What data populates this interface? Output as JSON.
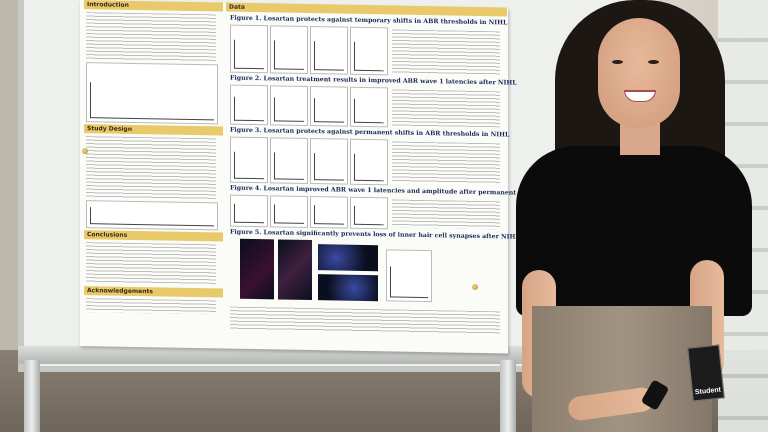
{
  "poster": {
    "sections": {
      "introduction": "Introduction",
      "data": "Data",
      "study_design": "Study Design",
      "conclusions": "Conclusions",
      "acknowledgements": "Acknowledgements"
    },
    "figures": [
      "Figure 1. Losartan protects against temporary shifts in ABR thresholds in NIHL",
      "Figure 2. Losartan treatment results in improved ABR wave 1 latencies after NIHL",
      "Figure 3. Losartan protects against permanent shifts in ABR thresholds in NIHL",
      "Figure 4. Losartan improved ABR wave 1 latencies and amplitude after permanent shifts",
      "Figure 5. Losartan significantly prevents loss of inner hair cell synapses after NIHL"
    ]
  },
  "badge": {
    "label": "Student"
  },
  "colors": {
    "banner": "#e9ca6a",
    "shirt": "#0b0b0c",
    "pants": "#a19483"
  }
}
